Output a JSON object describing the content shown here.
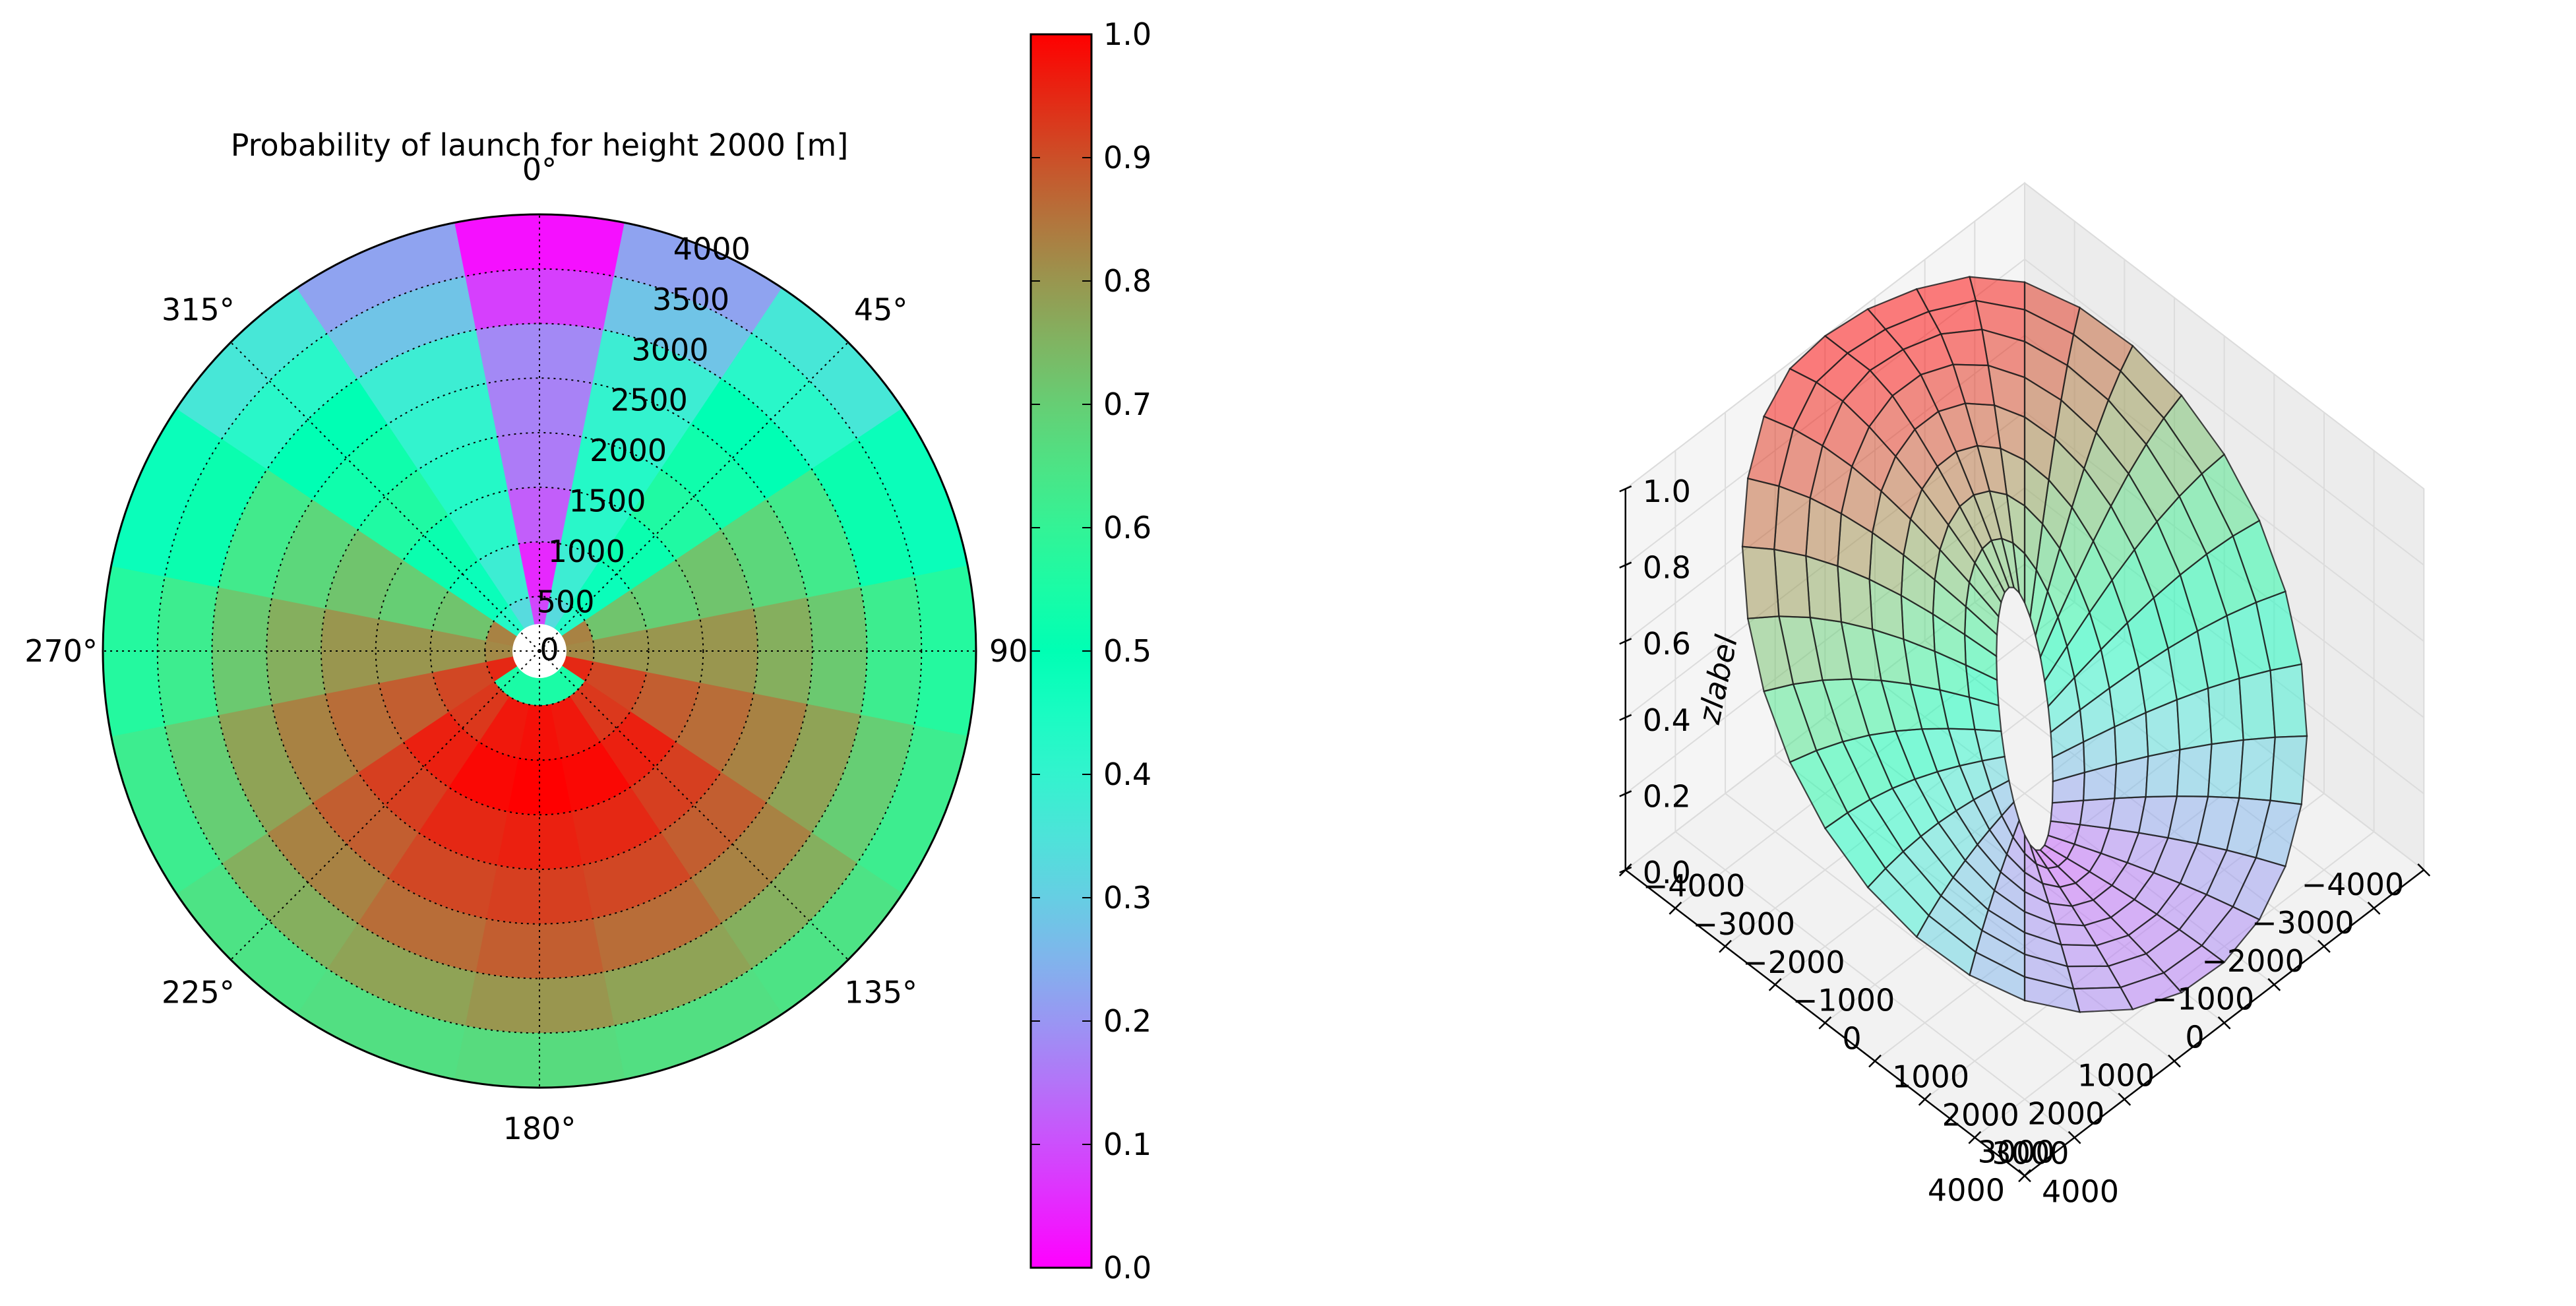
{
  "chart_data": [
    {
      "type": "heatmap",
      "projection": "polar",
      "title": "Probability of launch for height 2000 [m]",
      "theta_direction": "clockwise",
      "theta_zero": "top",
      "sector_width_deg": 22.5,
      "sector_centers_deg": [
        0,
        22.5,
        45,
        67.5,
        90,
        112.5,
        135,
        157.5,
        180,
        202.5,
        225,
        247.5,
        270,
        292.5,
        315,
        337.5
      ],
      "radial_bins": [
        [
          250,
          500
        ],
        [
          500,
          1000
        ],
        [
          1000,
          1500
        ],
        [
          1500,
          2000
        ],
        [
          2000,
          2500
        ],
        [
          2500,
          3000
        ],
        [
          3000,
          3500
        ],
        [
          3500,
          4000
        ]
      ],
      "values": [
        [
          0.09,
          0.33,
          0.43,
          0.83,
          0.82,
          0.95,
          0.55,
          0.55,
          0.55,
          0.55,
          0.55,
          0.95,
          0.82,
          0.83,
          0.43,
          0.33
        ],
        [
          0.05,
          0.38,
          0.48,
          0.72,
          0.8,
          0.91,
          0.93,
          0.97,
          0.98,
          0.97,
          0.93,
          0.91,
          0.8,
          0.72,
          0.48,
          0.38
        ],
        [
          0.12,
          0.42,
          0.52,
          0.7,
          0.8,
          0.88,
          0.96,
          0.99,
          1.0,
          0.99,
          0.96,
          0.88,
          0.8,
          0.7,
          0.52,
          0.42
        ],
        [
          0.16,
          0.43,
          0.56,
          0.72,
          0.8,
          0.86,
          0.92,
          0.95,
          0.96,
          0.95,
          0.92,
          0.86,
          0.8,
          0.72,
          0.56,
          0.43
        ],
        [
          0.17,
          0.4,
          0.53,
          0.68,
          0.76,
          0.83,
          0.88,
          0.91,
          0.92,
          0.91,
          0.88,
          0.83,
          0.76,
          0.68,
          0.53,
          0.4
        ],
        [
          0.18,
          0.38,
          0.5,
          0.63,
          0.71,
          0.78,
          0.83,
          0.86,
          0.88,
          0.86,
          0.83,
          0.78,
          0.71,
          0.63,
          0.5,
          0.38
        ],
        [
          0.08,
          0.28,
          0.42,
          0.52,
          0.62,
          0.7,
          0.76,
          0.78,
          0.8,
          0.78,
          0.76,
          0.7,
          0.62,
          0.52,
          0.42,
          0.28
        ],
        [
          0.02,
          0.22,
          0.36,
          0.48,
          0.57,
          0.62,
          0.65,
          0.66,
          0.67,
          0.66,
          0.65,
          0.62,
          0.57,
          0.48,
          0.36,
          0.22
        ]
      ],
      "theta_tick_labels": [
        "0°",
        "45°",
        "90°",
        "135°",
        "180°",
        "225°",
        "270°",
        "315°"
      ],
      "r_ticks": [
        0,
        500,
        1000,
        1500,
        2000,
        2500,
        3000,
        3500,
        4000
      ],
      "r_tick_labels": [
        "0",
        "500",
        "1000",
        "1500",
        "2000",
        "2500",
        "3000",
        "3500",
        "4000"
      ],
      "rlim": [
        0,
        4000
      ],
      "grid": true,
      "colormap": "rainbow",
      "colorbar": {
        "range": [
          0.0,
          1.0
        ],
        "ticks": [
          0.0,
          0.1,
          0.2,
          0.3,
          0.4,
          0.5,
          0.6,
          0.7,
          0.8,
          0.9,
          1.0
        ],
        "tick_labels": [
          "0.0",
          "0.1",
          "0.2",
          "0.3",
          "0.4",
          "0.5",
          "0.6",
          "0.7",
          "0.8",
          "0.9",
          "1.0"
        ]
      }
    },
    {
      "type": "surface3d",
      "colormap": "rainbow",
      "surface_alpha": 0.5,
      "view": {
        "elev_deg": 50,
        "azim_deg": 45
      },
      "surface_grid": {
        "radial_bins": 9,
        "theta_steps": 33
      },
      "xlim": [
        -4000,
        4000
      ],
      "ylim": [
        -4000,
        4000
      ],
      "zlim": [
        0,
        1
      ],
      "x_tick_labels": [
        "−4000",
        "−3000",
        "−2000",
        "−1000",
        "0",
        "1000",
        "2000",
        "3000",
        "4000"
      ],
      "y_tick_labels": [
        "−4000",
        "−3000",
        "−2000",
        "−1000",
        "0",
        "1000",
        "2000",
        "3000",
        "4000"
      ],
      "z_tick_labels": [
        "0.0",
        "0.2",
        "0.4",
        "0.6",
        "0.8",
        "1.0"
      ],
      "zlabel": "zlabel"
    }
  ]
}
